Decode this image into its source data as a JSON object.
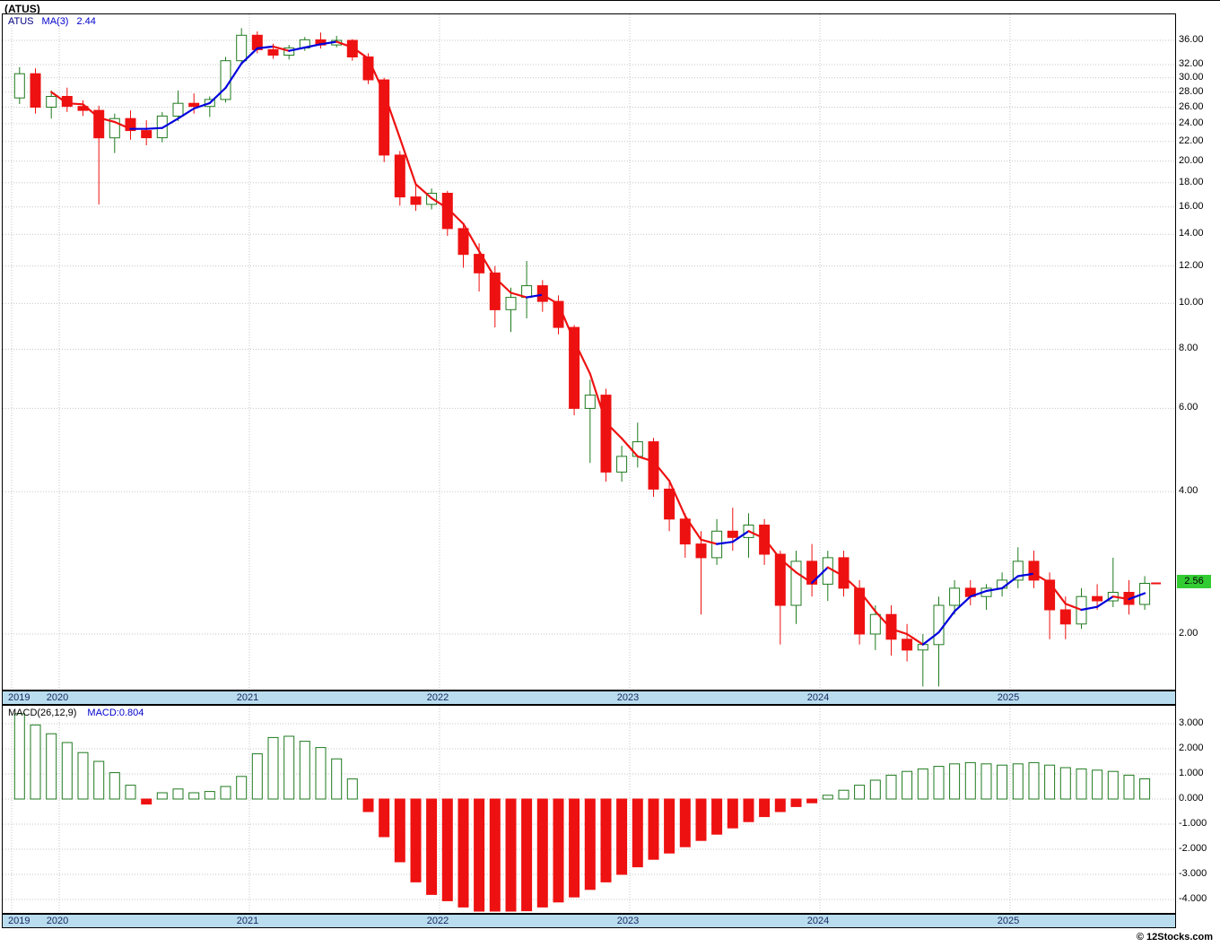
{
  "window": {
    "title": "(ATUS)",
    "watermark": "© 12Stocks.com"
  },
  "price_panel": {
    "legend": {
      "symbol": "ATUS",
      "ma_label": "MA(3)",
      "ma_value": "2.44"
    },
    "y_axis_labels": [
      "36.00",
      "32.00",
      "30.00",
      "28.00",
      "26.00",
      "24.00",
      "22.00",
      "20.00",
      "18.00",
      "16.00",
      "14.00",
      "12.00",
      "10.00",
      "8.00",
      "6.00",
      "4.00",
      "2.00"
    ],
    "last_price_badge": "2.56"
  },
  "macd_panel": {
    "legend_label": "MACD(26,12,9)",
    "legend_value": "MACD:0.804",
    "y_axis_labels": [
      "3.000",
      "2.000",
      "1.000",
      "0.000",
      "-1.000",
      "-2.000",
      "-3.000",
      "-4.000"
    ]
  },
  "x_axis": {
    "years": [
      "2019",
      "2020",
      "2021",
      "2022",
      "2023",
      "2024",
      "2025"
    ]
  },
  "chart_data": {
    "type": "candlestick",
    "symbol": "ATUS",
    "interval": "monthly",
    "start_month": "2019-10",
    "price_scale": "log",
    "price_axis_ticks": [
      36,
      32,
      30,
      28,
      26,
      24,
      22,
      20,
      18,
      16,
      14,
      12,
      10,
      8,
      6,
      4,
      2
    ],
    "ma_period": 3,
    "ma_current": 2.44,
    "last_close": 2.56,
    "candles_ohlc": [
      [
        27.2,
        31.6,
        26.4,
        30.6
      ],
      [
        30.6,
        31.4,
        25.2,
        26.0
      ],
      [
        26.0,
        28.2,
        24.6,
        27.4
      ],
      [
        27.4,
        28.6,
        25.4,
        26.1
      ],
      [
        26.1,
        26.9,
        24.9,
        25.6
      ],
      [
        25.6,
        26.2,
        16.2,
        22.4
      ],
      [
        22.4,
        25.2,
        20.8,
        24.6
      ],
      [
        24.6,
        25.6,
        22.2,
        23.2
      ],
      [
        23.2,
        24.4,
        21.6,
        22.4
      ],
      [
        22.4,
        25.4,
        21.9,
        24.9
      ],
      [
        24.9,
        28.2,
        24.3,
        26.5
      ],
      [
        26.5,
        27.8,
        25.2,
        26.1
      ],
      [
        26.1,
        27.4,
        24.8,
        27.0
      ],
      [
        27.0,
        33.2,
        26.6,
        32.6
      ],
      [
        32.6,
        38.2,
        32.2,
        36.9
      ],
      [
        36.9,
        37.6,
        33.8,
        34.4
      ],
      [
        34.4,
        35.4,
        32.9,
        33.5
      ],
      [
        33.5,
        35.2,
        32.8,
        34.7
      ],
      [
        34.7,
        36.6,
        34.2,
        36.1
      ],
      [
        36.1,
        37.4,
        34.6,
        35.2
      ],
      [
        35.2,
        36.8,
        34.8,
        36.0
      ],
      [
        36.0,
        36.2,
        32.6,
        33.2
      ],
      [
        33.2,
        33.8,
        29.1,
        29.7
      ],
      [
        29.7,
        30.0,
        19.9,
        20.6
      ],
      [
        20.6,
        21.0,
        16.1,
        16.8
      ],
      [
        16.8,
        17.8,
        15.7,
        16.2
      ],
      [
        16.2,
        17.5,
        15.8,
        17.1
      ],
      [
        17.1,
        17.3,
        13.9,
        14.4
      ],
      [
        14.4,
        14.8,
        11.9,
        12.7
      ],
      [
        12.7,
        13.4,
        10.6,
        11.6
      ],
      [
        11.6,
        12.0,
        8.9,
        9.7
      ],
      [
        9.7,
        10.8,
        8.7,
        10.3
      ],
      [
        10.3,
        12.3,
        9.3,
        10.9
      ],
      [
        10.9,
        11.2,
        9.6,
        10.1
      ],
      [
        10.1,
        10.4,
        8.6,
        8.9
      ],
      [
        8.9,
        9.0,
        5.8,
        6.0
      ],
      [
        6.0,
        6.9,
        4.6,
        6.4
      ],
      [
        6.4,
        6.6,
        4.2,
        4.4
      ],
      [
        4.4,
        5.0,
        4.2,
        4.75
      ],
      [
        4.75,
        5.6,
        4.5,
        5.1
      ],
      [
        5.1,
        5.2,
        3.9,
        4.05
      ],
      [
        4.05,
        4.2,
        3.3,
        3.5
      ],
      [
        3.5,
        3.6,
        2.9,
        3.1
      ],
      [
        3.1,
        3.3,
        2.2,
        2.9
      ],
      [
        2.9,
        3.5,
        2.8,
        3.3
      ],
      [
        3.3,
        3.7,
        3.0,
        3.2
      ],
      [
        3.2,
        3.6,
        2.9,
        3.4
      ],
      [
        3.4,
        3.5,
        2.8,
        2.95
      ],
      [
        2.95,
        3.0,
        1.9,
        2.3
      ],
      [
        2.3,
        3.0,
        2.1,
        2.85
      ],
      [
        2.85,
        3.1,
        2.4,
        2.55
      ],
      [
        2.55,
        3.0,
        2.35,
        2.9
      ],
      [
        2.9,
        3.0,
        2.4,
        2.5
      ],
      [
        2.5,
        2.6,
        1.9,
        2.0
      ],
      [
        2.0,
        2.3,
        1.85,
        2.2
      ],
      [
        2.2,
        2.3,
        1.8,
        1.95
      ],
      [
        1.95,
        2.1,
        1.75,
        1.85
      ],
      [
        1.85,
        2.0,
        1.55,
        1.9
      ],
      [
        1.9,
        2.4,
        1.55,
        2.3
      ],
      [
        2.3,
        2.6,
        2.2,
        2.5
      ],
      [
        2.5,
        2.6,
        2.3,
        2.4
      ],
      [
        2.4,
        2.55,
        2.25,
        2.5
      ],
      [
        2.5,
        2.7,
        2.4,
        2.6
      ],
      [
        2.6,
        3.05,
        2.5,
        2.85
      ],
      [
        2.85,
        3.0,
        2.5,
        2.6
      ],
      [
        2.6,
        2.7,
        1.95,
        2.25
      ],
      [
        2.25,
        2.4,
        1.95,
        2.1
      ],
      [
        2.1,
        2.5,
        2.05,
        2.4
      ],
      [
        2.4,
        2.55,
        2.25,
        2.35
      ],
      [
        2.35,
        2.9,
        2.28,
        2.45
      ],
      [
        2.45,
        2.6,
        2.2,
        2.31
      ],
      [
        2.31,
        2.65,
        2.25,
        2.56
      ]
    ],
    "macd": {
      "label": "MACD(26,12,9)",
      "fast": 12,
      "slow": 26,
      "signal": 9,
      "current": 0.804,
      "axis_ticks": [
        3,
        2,
        1,
        0,
        -1,
        -2,
        -3,
        -4
      ],
      "histogram": [
        3.4,
        2.95,
        2.6,
        2.25,
        1.85,
        1.5,
        1.05,
        0.55,
        -0.2,
        0.25,
        0.4,
        0.25,
        0.3,
        0.5,
        0.9,
        1.8,
        2.45,
        2.5,
        2.3,
        2.05,
        1.6,
        0.8,
        -0.5,
        -1.5,
        -2.5,
        -3.3,
        -3.8,
        -4.05,
        -4.3,
        -4.5,
        -4.6,
        -4.55,
        -4.45,
        -4.3,
        -4.1,
        -3.9,
        -3.6,
        -3.3,
        -3.0,
        -2.7,
        -2.4,
        -2.15,
        -1.9,
        -1.65,
        -1.4,
        -1.15,
        -0.9,
        -0.7,
        -0.5,
        -0.3,
        -0.15,
        0.15,
        0.35,
        0.55,
        0.75,
        0.95,
        1.1,
        1.2,
        1.3,
        1.4,
        1.45,
        1.4,
        1.35,
        1.4,
        1.45,
        1.35,
        1.25,
        1.2,
        1.15,
        1.1,
        0.95,
        0.804
      ]
    },
    "colors": {
      "up": "#1f7a1f",
      "down": "#ee1111",
      "ma_up": "#0000dd",
      "ma_down": "#ee1111",
      "badge_bg": "#33cc33",
      "band_bg": "#b9ddee"
    }
  }
}
